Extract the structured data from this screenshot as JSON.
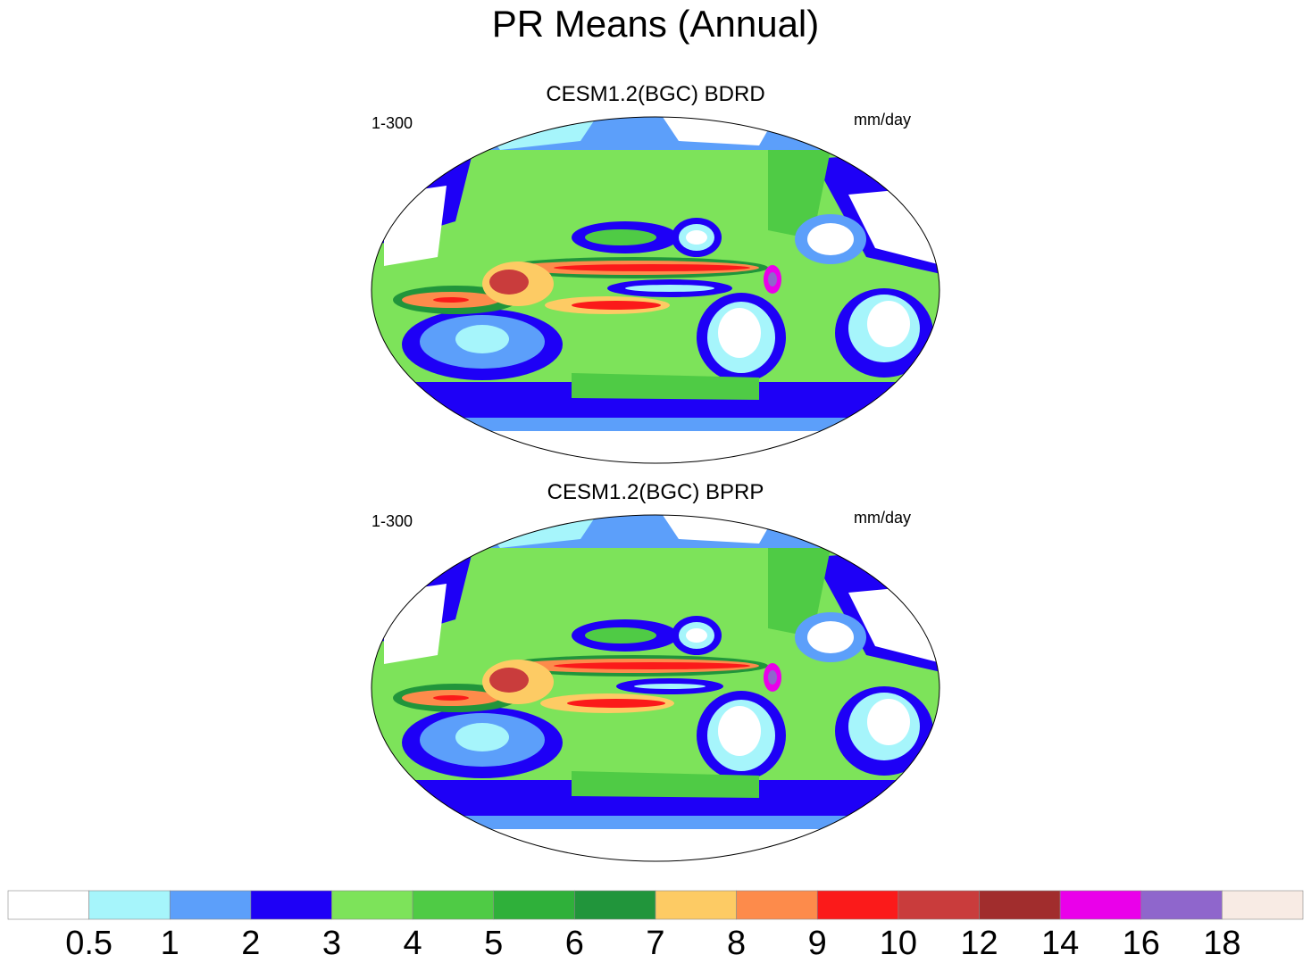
{
  "title": "PR Means (Annual)",
  "panels": [
    {
      "title": "CESM1.2(BGC) BDRD",
      "left_label": "1-300",
      "right_label": "mm/day"
    },
    {
      "title": "CESM1.2(BGC) BPRP",
      "left_label": "1-300",
      "right_label": "mm/day"
    }
  ],
  "colorbar": {
    "colors": [
      "#ffffff",
      "#a6f5fb",
      "#5c9ffa",
      "#1e00f6",
      "#7de35a",
      "#4fcb45",
      "#2fb03a",
      "#21953b",
      "#fdcb64",
      "#fd8b4b",
      "#fb1a1a",
      "#c93c3c",
      "#a12d2d",
      "#ea00ea",
      "#8f66cc",
      "#f8ebe4"
    ],
    "labels": [
      "0.5",
      "1",
      "2",
      "3",
      "4",
      "5",
      "6",
      "7",
      "8",
      "9",
      "10",
      "12",
      "14",
      "16",
      "18"
    ]
  }
}
